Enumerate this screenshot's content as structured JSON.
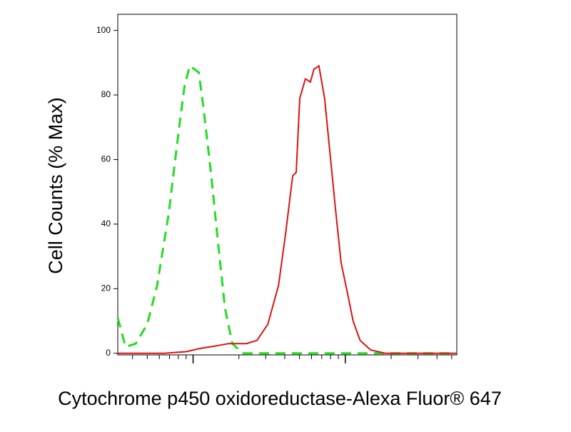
{
  "chart_data": {
    "type": "line",
    "x_label": "Cytochrome p450 oxidoreductase-Alexa Fluor® 647",
    "y_label": "Cell Counts (% Max)",
    "xscale": "log",
    "xlim": [
      32,
      5400
    ],
    "ylim": [
      -0.5,
      105
    ],
    "xticks": [
      100,
      1000
    ],
    "xminor_ticks": [
      40,
      50,
      60,
      70,
      80,
      90,
      200,
      300,
      400,
      500,
      600,
      700,
      800,
      900,
      2000,
      3000,
      4000,
      5000
    ],
    "yticks": [
      0,
      20,
      40,
      60,
      80,
      100
    ],
    "series": [
      {
        "color": "#22dd22",
        "dash": true,
        "x": [
          32,
          36,
          42,
          50,
          58,
          69,
          81,
          88,
          95,
          102,
          109,
          117,
          131,
          146,
          162,
          181,
          212,
          5400
        ],
        "values": [
          11,
          2,
          3,
          9,
          21,
          43,
          70,
          83,
          89,
          88,
          87,
          76,
          56,
          34,
          14,
          3,
          0,
          0
        ]
      },
      {
        "color": "#dd1111",
        "dash": false,
        "x": [
          32,
          65,
          90,
          111,
          138,
          171,
          224,
          263,
          310,
          364,
          405,
          451,
          476,
          502,
          547,
          590,
          622,
          671,
          731,
          789,
          861,
          938,
          1030,
          1125,
          1250,
          1470,
          1830,
          5400
        ],
        "values": [
          0,
          0,
          0.5,
          1.5,
          2.2,
          3,
          3,
          4,
          9,
          21,
          37,
          55,
          56,
          79,
          85,
          84,
          88,
          89,
          79,
          63,
          45,
          28,
          19,
          10,
          4,
          1,
          0,
          0
        ]
      }
    ]
  }
}
